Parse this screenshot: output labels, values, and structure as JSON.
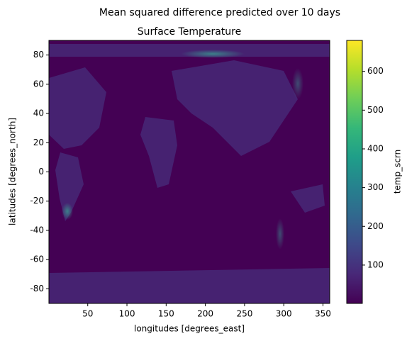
{
  "chart_data": {
    "type": "image",
    "title": "Mean squared difference predicted over 10 days",
    "subtitle": "Surface Temperature",
    "xlabel": "longitudes [degrees_east]",
    "ylabel": "latitudes [degrees_north]",
    "colorbar_label": "temp_scrn",
    "colormap": "viridis",
    "xlim": [
      0.5,
      358.6
    ],
    "ylim": [
      -90,
      90
    ],
    "xticks": [
      50,
      100,
      150,
      200,
      250,
      300,
      350
    ],
    "yticks": [
      -80,
      -60,
      -40,
      -20,
      0,
      20,
      40,
      60,
      80
    ],
    "clim": [
      1,
      680
    ],
    "cticks": [
      100,
      200,
      300,
      400,
      500,
      600
    ]
  }
}
